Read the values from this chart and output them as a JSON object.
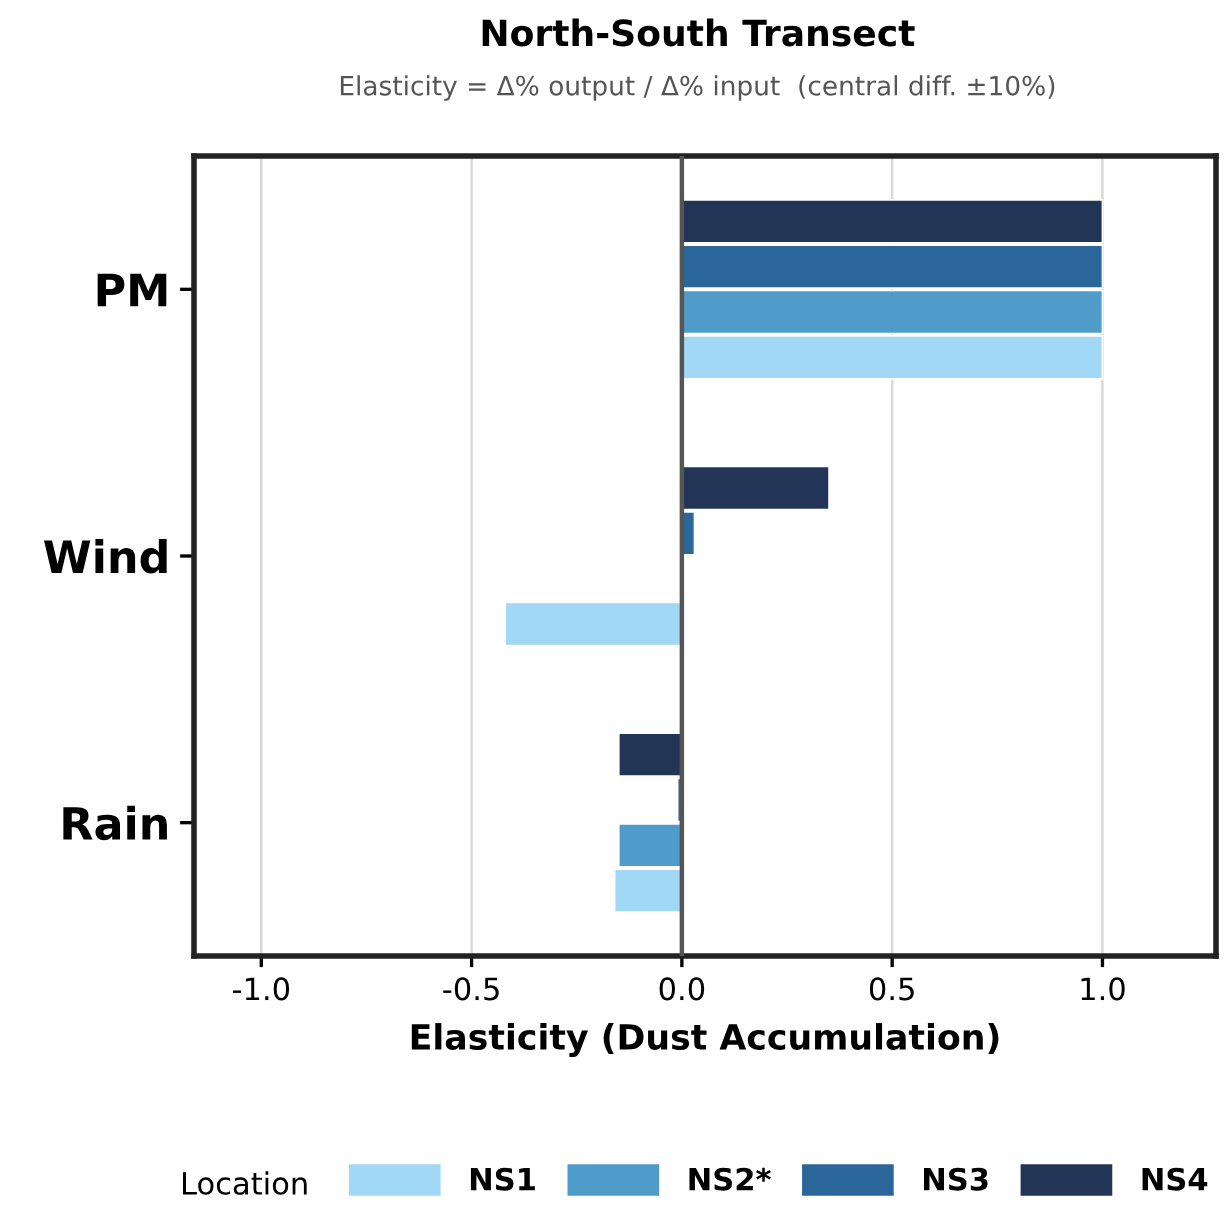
{
  "chart_data": {
    "type": "bar",
    "orientation": "horizontal",
    "title": "North-South Transect",
    "subtitle": "Elasticity = Δ% output / Δ% input  (central diff. ±10%)",
    "xlabel": "Elasticity (Dust Accumulation)",
    "legend_title": "Location",
    "categories": [
      "PM",
      "Wind",
      "Rain"
    ],
    "series": [
      {
        "name": "NS1",
        "color": "#a0d8f5",
        "values": [
          1.0,
          -0.42,
          -0.16
        ]
      },
      {
        "name": "NS2*",
        "color": "#4f9bc9",
        "values": [
          1.0,
          null,
          -0.15
        ]
      },
      {
        "name": "NS3",
        "color": "#2a6699",
        "values": [
          1.0,
          0.03,
          -0.01
        ]
      },
      {
        "name": "NS4",
        "color": "#233556",
        "values": [
          1.0,
          0.35,
          -0.15
        ]
      }
    ],
    "xlim": [
      -1.16,
      1.27
    ],
    "xticks": [
      {
        "value": -1,
        "label": "-1.0"
      },
      {
        "value": -0.5,
        "label": "-0.5"
      },
      {
        "value": 0,
        "label": "0.0"
      },
      {
        "value": 0.5,
        "label": "0.5"
      },
      {
        "value": 1,
        "label": "1.0"
      }
    ],
    "ref_lines": [
      {
        "axis": "x",
        "value": 0,
        "color": "#555555"
      }
    ],
    "grid": "x",
    "legend": "bottom"
  }
}
